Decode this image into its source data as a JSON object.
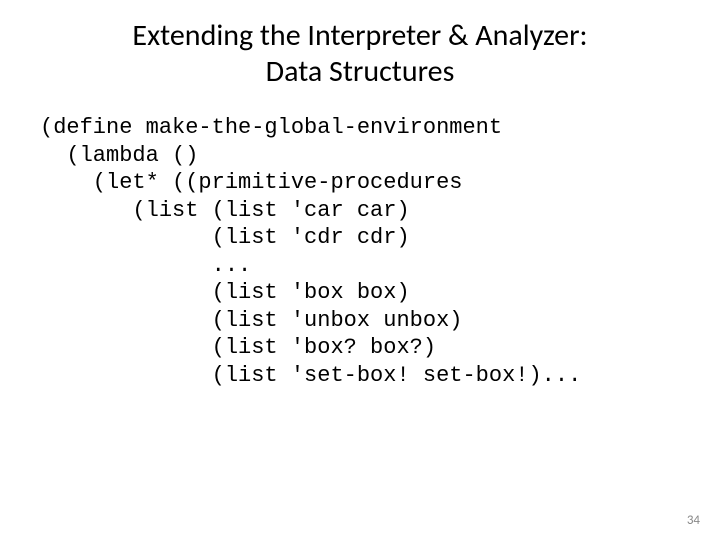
{
  "title_line1": "Extending the Interpreter & Analyzer:",
  "title_line2": "Data Structures",
  "code_lines": {
    "l1": "(define make-the-global-environment",
    "l2": "  (lambda ()",
    "l3": "    (let* ((primitive-procedures",
    "l4": "       (list (list 'car car)",
    "l5": "             (list 'cdr cdr)",
    "l6": "             ...",
    "l7": "             (list 'box box)",
    "l8": "             (list 'unbox unbox)",
    "l9": "             (list 'box? box?)",
    "l10": "             (list 'set-box! set-box!)..."
  },
  "page_number": "34"
}
